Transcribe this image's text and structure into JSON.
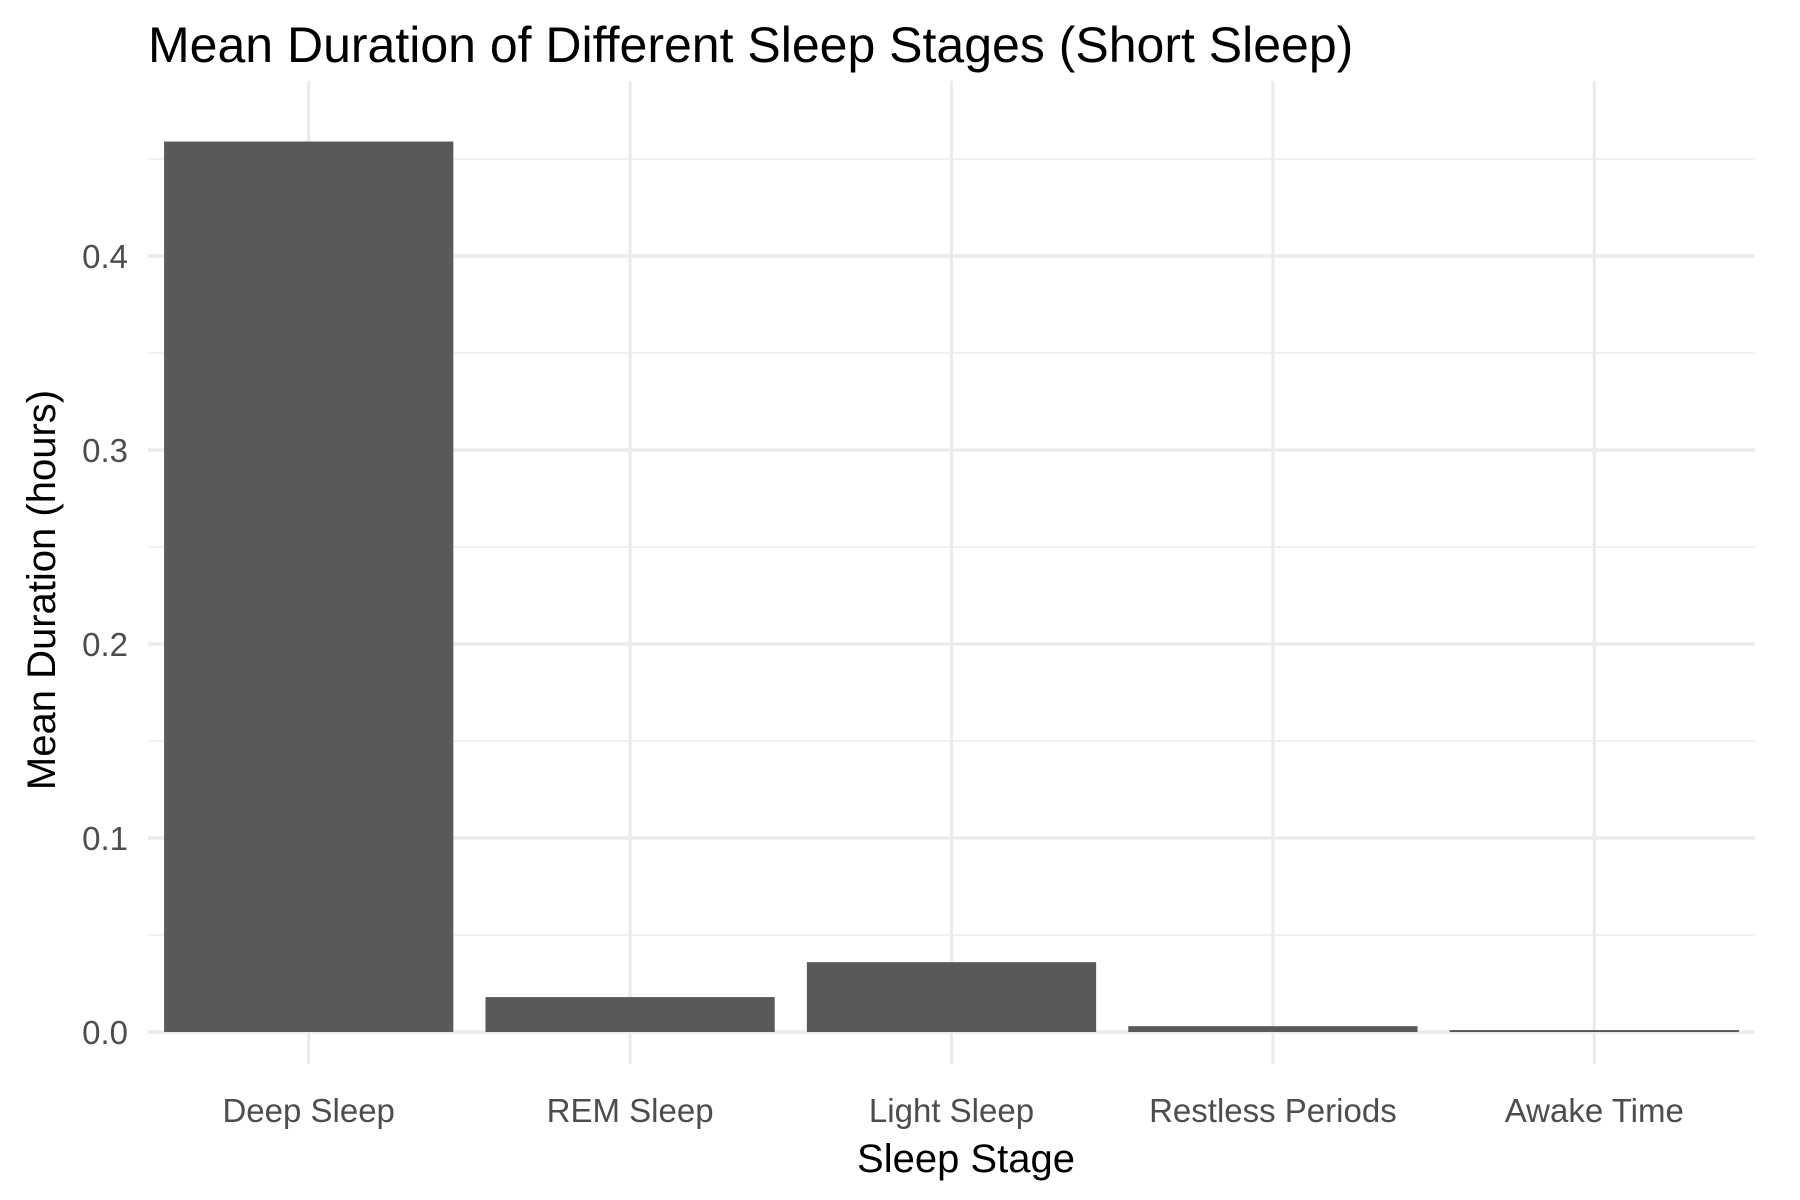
{
  "chart_data": {
    "type": "bar",
    "title": "Mean Duration of Different Sleep Stages (Short Sleep)",
    "xlabel": "Sleep Stage",
    "ylabel": "Mean Duration (hours)",
    "categories": [
      "Deep Sleep",
      "REM Sleep",
      "Light Sleep",
      "Restless Periods",
      "Awake Time"
    ],
    "values": [
      0.459,
      0.018,
      0.036,
      0.003,
      0.001
    ],
    "ylim": [
      0,
      0.48
    ],
    "yticks": [
      0.0,
      0.1,
      0.2,
      0.3,
      0.4
    ],
    "ytick_labels": [
      "0.0",
      "0.1",
      "0.2",
      "0.3",
      "0.4"
    ],
    "grid": true,
    "legend": "none",
    "bar_color": "#595959",
    "grid_color": "#ebebeb"
  }
}
